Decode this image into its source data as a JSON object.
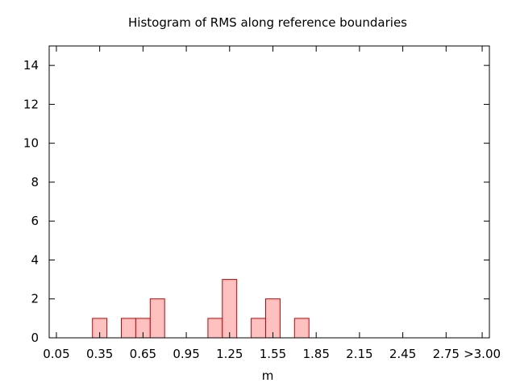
{
  "chart_data": {
    "type": "bar",
    "title": "Histogram of RMS along reference boundaries",
    "xlabel": "m",
    "ylabel": "",
    "bin_width": 0.1,
    "x_range": [
      0.0,
      3.05
    ],
    "ylim": [
      0,
      15
    ],
    "x_ticks": [
      0.05,
      0.35,
      0.65,
      0.95,
      1.25,
      1.55,
      1.85,
      2.15,
      2.45,
      2.75,
      3.0
    ],
    "x_tick_labels": [
      "0.05",
      "0.35",
      "0.65",
      "0.95",
      "1.25",
      "1.55",
      "1.85",
      "2.15",
      "2.45",
      "2.75",
      ">3.00"
    ],
    "y_ticks": [
      0,
      2,
      4,
      6,
      8,
      10,
      12,
      14
    ],
    "y_tick_labels": [
      "0",
      "2",
      "4",
      "6",
      "8",
      "10",
      "12",
      "14"
    ],
    "bins": [
      {
        "center": 0.35,
        "count": 1
      },
      {
        "center": 0.55,
        "count": 1
      },
      {
        "center": 0.65,
        "count": 1
      },
      {
        "center": 0.75,
        "count": 2
      },
      {
        "center": 1.15,
        "count": 1
      },
      {
        "center": 1.25,
        "count": 3
      },
      {
        "center": 1.45,
        "count": 1
      },
      {
        "center": 1.55,
        "count": 2
      },
      {
        "center": 1.75,
        "count": 1
      }
    ],
    "bar_fill": "#ffc0c0",
    "bar_stroke": "#cc0000",
    "grid": false,
    "legend": "none"
  }
}
